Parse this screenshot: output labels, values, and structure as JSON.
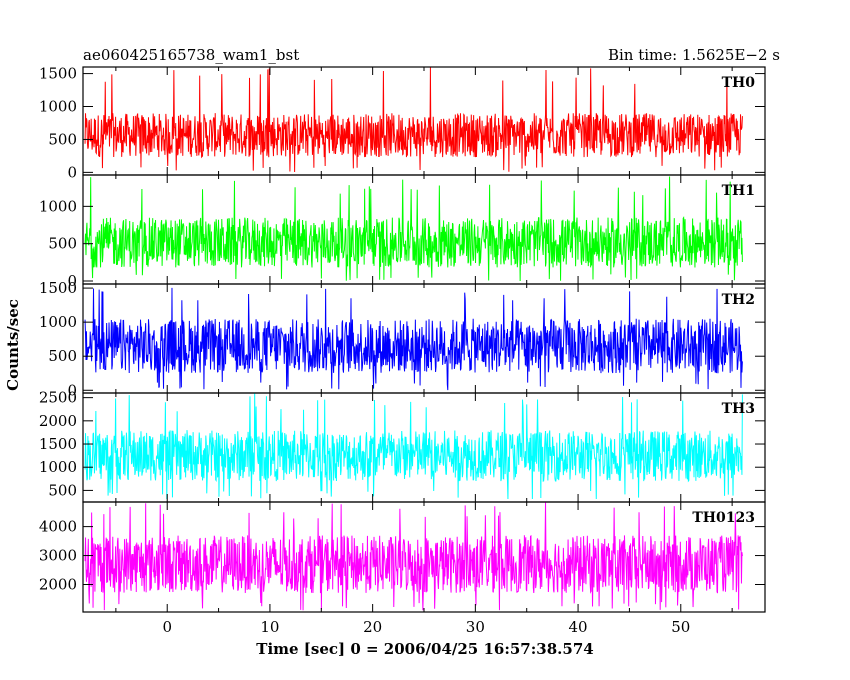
{
  "header": {
    "left_title": "ae060425165738_wam1_bst",
    "right_title": "Bin time: 1.5625E−2 s"
  },
  "chart_data": {
    "type": "line",
    "title": "ae060425165738_wam1_bst",
    "subtitle": "Bin time: 1.5625E−2 s",
    "xlabel": "Time [sec] 0 = 2006/04/25 16:57:38.574",
    "ylabel": "Counts/sec",
    "xlim": [
      -8.2,
      58.2
    ],
    "x_data_range": [
      -8.0,
      56.0
    ],
    "x_ticks": [
      0,
      10,
      20,
      30,
      40,
      50
    ],
    "x_tick_labels": [
      "0",
      "10",
      "20",
      "30",
      "40",
      "50"
    ],
    "grid": false,
    "panels": [
      {
        "name": "TH0",
        "color": "#ff0000",
        "ylim": [
          -40,
          1600
        ],
        "y_ticks": [
          0,
          500,
          1000,
          1500
        ],
        "y_tick_labels": [
          "0",
          "500",
          "1000",
          "1500"
        ],
        "series_typical_min": 230,
        "series_typical_max": 900,
        "series_min": 0,
        "series_max": 1600,
        "series_mean": 560
      },
      {
        "name": "TH1",
        "color": "#00ff00",
        "ylim": [
          -40,
          1420
        ],
        "y_ticks": [
          0,
          500,
          1000
        ],
        "y_tick_labels": [
          "0",
          "500",
          "1000"
        ],
        "series_typical_min": 180,
        "series_typical_max": 850,
        "series_min": 0,
        "series_max": 1420,
        "series_mean": 490
      },
      {
        "name": "TH2",
        "color": "#0000ff",
        "ylim": [
          -40,
          1560
        ],
        "y_ticks": [
          0,
          500,
          1000,
          1500
        ],
        "y_tick_labels": [
          "0",
          "500",
          "1000",
          "1500"
        ],
        "series_typical_min": 250,
        "series_typical_max": 1050,
        "series_min": 0,
        "series_max": 1560,
        "series_mean": 650
      },
      {
        "name": "TH3",
        "color": "#00ffff",
        "ylim": [
          250,
          2600
        ],
        "y_ticks": [
          500,
          1000,
          1500,
          2000,
          2500
        ],
        "y_tick_labels": [
          "500",
          "1000",
          "1500",
          "2000",
          "2500"
        ],
        "series_typical_min": 700,
        "series_typical_max": 1800,
        "series_min": 300,
        "series_max": 2600,
        "series_mean": 1230
      },
      {
        "name": "TH0123",
        "color": "#ff00ff",
        "ylim": [
          1050,
          4850
        ],
        "y_ticks": [
          2000,
          3000,
          4000
        ],
        "y_tick_labels": [
          "2000",
          "3000",
          "4000"
        ],
        "series_typical_min": 1700,
        "series_typical_max": 3700,
        "series_min": 1100,
        "series_max": 4850,
        "series_mean": 2650
      }
    ]
  }
}
